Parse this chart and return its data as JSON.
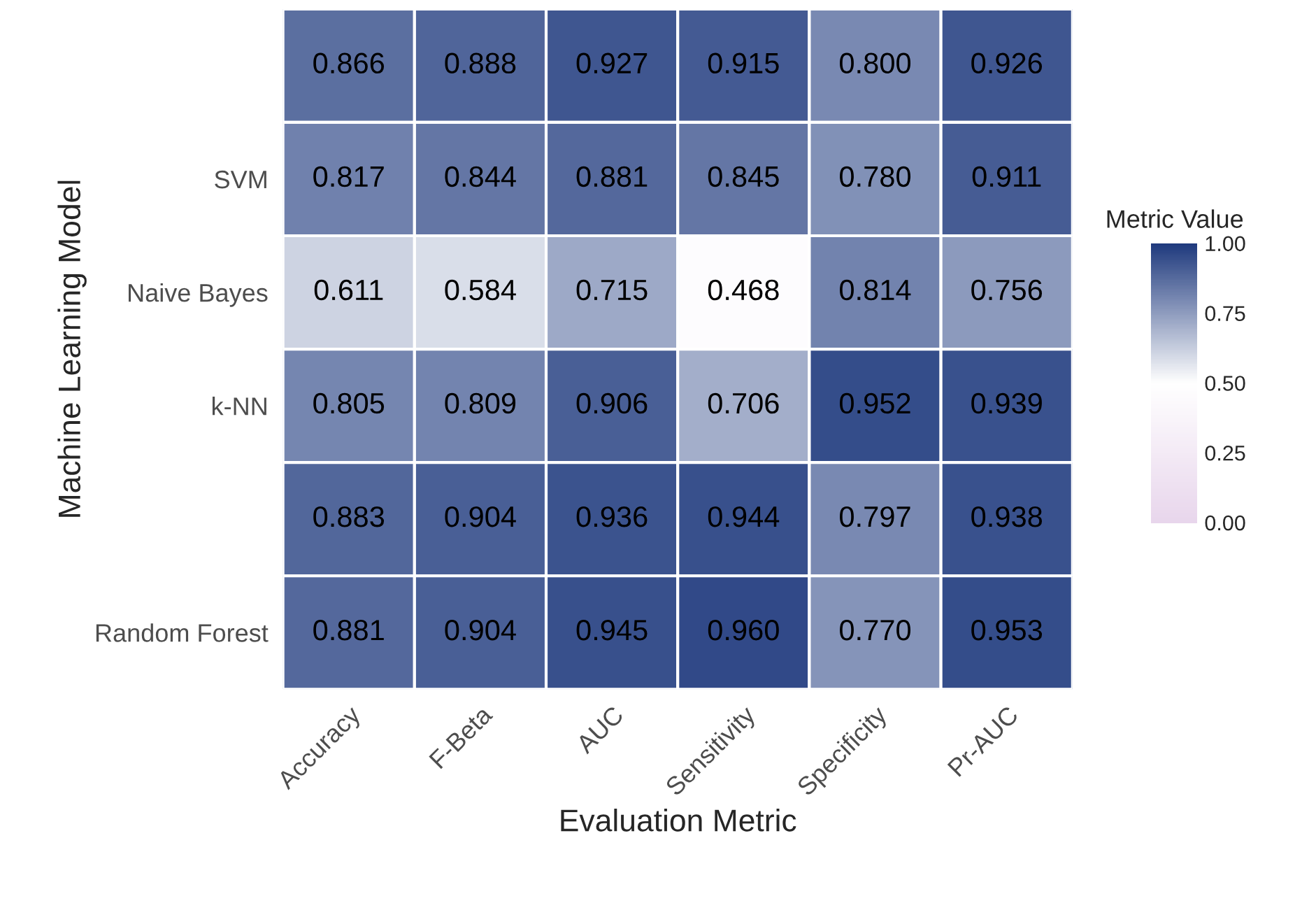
{
  "chart_data": {
    "type": "heatmap",
    "xlabel": "Evaluation Metric",
    "ylabel": "Machine Learning Model",
    "clabel": "Metric Value",
    "categories": [
      "Accuracy",
      "F-Beta",
      "AUC",
      "Sensitivity",
      "Specificity",
      "Pr-AUC"
    ],
    "y_categories": [
      null,
      "SVM",
      "Naive Bayes",
      "k-NN",
      null,
      "Random Forest"
    ],
    "cells": [
      [
        0.866,
        0.888,
        0.927,
        0.915,
        0.8,
        0.926
      ],
      [
        0.817,
        0.844,
        0.881,
        0.845,
        0.78,
        0.911
      ],
      [
        0.611,
        0.584,
        0.715,
        0.468,
        0.814,
        0.756
      ],
      [
        0.805,
        0.809,
        0.906,
        0.706,
        0.952,
        0.939
      ],
      [
        0.883,
        0.904,
        0.936,
        0.944,
        0.797,
        0.938
      ],
      [
        0.881,
        0.904,
        0.945,
        0.96,
        0.77,
        0.953
      ]
    ],
    "cell_labels": [
      [
        "0.866",
        "0.888",
        "0.927",
        "0.915",
        "0.800",
        "0.926"
      ],
      [
        "0.817",
        "0.844",
        "0.881",
        "0.845",
        "0.780",
        "0.911"
      ],
      [
        "0.611",
        "0.584",
        "0.715",
        "0.468",
        "0.814",
        "0.756"
      ],
      [
        "0.805",
        "0.809",
        "0.906",
        "0.706",
        "0.952",
        "0.939"
      ],
      [
        "0.883",
        "0.904",
        "0.936",
        "0.944",
        "0.797",
        "0.938"
      ],
      [
        "0.881",
        "0.904",
        "0.945",
        "0.960",
        "0.770",
        "0.953"
      ]
    ],
    "colors": [
      "#e8d6ec",
      "#ffffff",
      "#1f3a7e"
    ],
    "clim": [
      0,
      1
    ],
    "cticks": [
      {
        "value": 0,
        "label": "0.00"
      },
      {
        "value": 0.25,
        "label": "0.25"
      },
      {
        "value": 0.5,
        "label": "0.50"
      },
      {
        "value": 0.75,
        "label": "0.75"
      },
      {
        "value": 1,
        "label": "1.00"
      }
    ]
  }
}
